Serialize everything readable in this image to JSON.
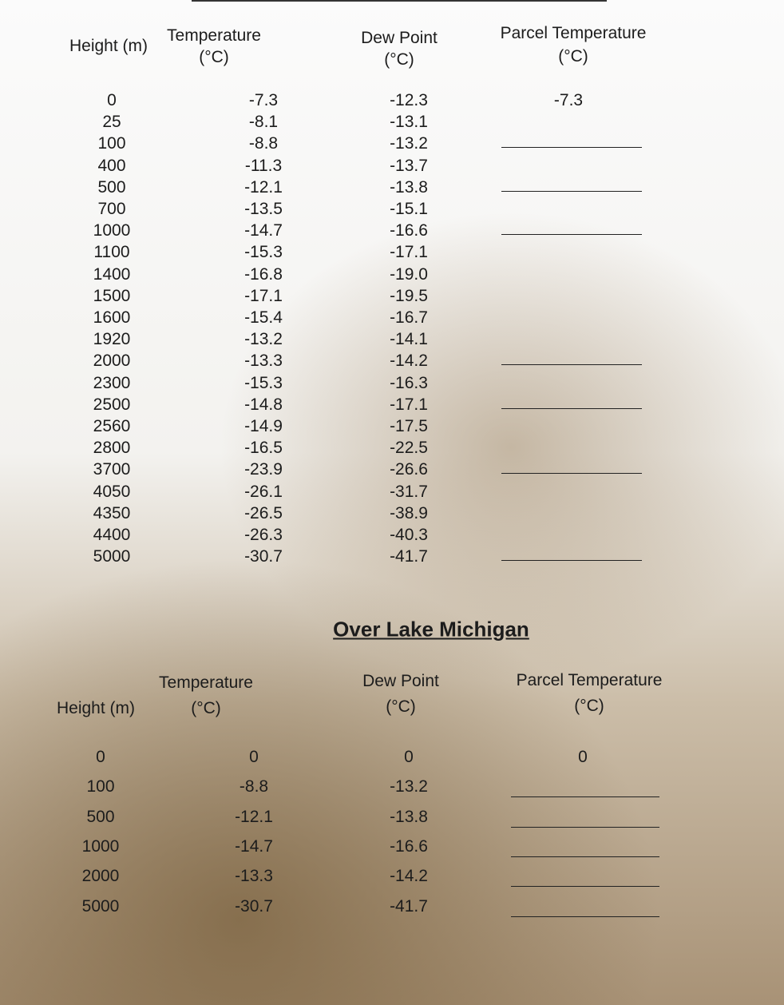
{
  "table1": {
    "headers": [
      [
        "Height (m)"
      ],
      [
        "Temperature",
        "(°C)"
      ],
      [
        "Dew Point",
        "(°C)"
      ],
      [
        "Parcel Temperature",
        "(°C)"
      ]
    ],
    "rows": [
      [
        "0",
        "-7.3",
        "-12.3",
        "-7.3"
      ],
      [
        "25",
        "-8.1",
        "-13.1"
      ],
      [
        "100",
        "-8.8",
        "-13.2"
      ],
      [
        "400",
        "-11.3",
        "-13.7"
      ],
      [
        "500",
        "-12.1",
        "-13.8"
      ],
      [
        "700",
        "-13.5",
        "-15.1"
      ],
      [
        "1000",
        "-14.7",
        "-16.6"
      ],
      [
        "1100",
        "-15.3",
        "-17.1"
      ],
      [
        "1400",
        "-16.8",
        "-19.0"
      ],
      [
        "1500",
        "-17.1",
        "-19.5"
      ],
      [
        "1600",
        "-15.4",
        "-16.7"
      ],
      [
        "1920",
        "-13.2",
        "-14.1"
      ],
      [
        "2000",
        "-13.3",
        "-14.2"
      ],
      [
        "2300",
        "-15.3",
        "-16.3"
      ],
      [
        "2500",
        "-14.8",
        "-17.1"
      ],
      [
        "2560",
        "-14.9",
        "-17.5"
      ],
      [
        "2800",
        "-16.5",
        "-22.5"
      ],
      [
        "3700",
        "-23.9",
        "-26.6"
      ],
      [
        "4050",
        "-26.1",
        "-31.7"
      ],
      [
        "4350",
        "-26.5",
        "-38.9"
      ],
      [
        "4400",
        "-26.3",
        "-40.3"
      ],
      [
        "5000",
        "-30.7",
        "-41.7"
      ]
    ]
  },
  "section_title": "Over Lake Michigan",
  "table2": {
    "headers": [
      [
        "Height (m)"
      ],
      [
        "Temperature",
        "(°C)"
      ],
      [
        "Dew Point",
        "(°C)"
      ],
      [
        "Parcel Temperature",
        "(°C)"
      ]
    ],
    "rows": [
      [
        "0",
        "0",
        "0",
        "0"
      ],
      [
        "100",
        "-8.8",
        "-13.2"
      ],
      [
        "500",
        "-12.1",
        "-13.8"
      ],
      [
        "1000",
        "-14.7",
        "-16.6"
      ],
      [
        "2000",
        "-13.3",
        "-14.2"
      ],
      [
        "5000",
        "-30.7",
        "-41.7"
      ]
    ]
  }
}
